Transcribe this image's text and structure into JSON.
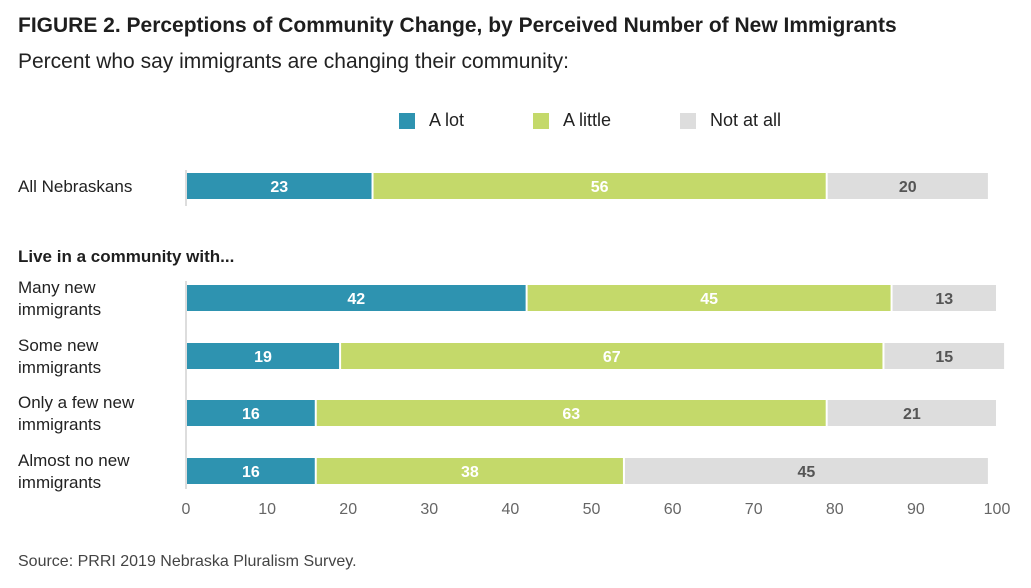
{
  "title": "FIGURE 2. Perceptions of Community Change, by Perceived Number of New Immigrants",
  "subtitle": "Percent who say immigrants are changing their community:",
  "source": "Source: PRRI 2019 Nebraska Pluralism Survey.",
  "colors": {
    "a_lot": "#2e93b0",
    "a_little": "#c4d96a",
    "not_at_all": "#dddddd"
  },
  "chart_data": {
    "type": "bar",
    "orientation": "horizontal",
    "stacked": true,
    "title": "FIGURE 2. Perceptions of Community Change, by Perceived Number of New Immigrants",
    "subtitle": "Percent who say immigrants are changing their community:",
    "group_label": "Live in a community with...",
    "categories": [
      [
        "All Nebraskans"
      ],
      [
        "Many new",
        "immigrants"
      ],
      [
        "Some new",
        "immigrants"
      ],
      [
        "Only a few new",
        "immigrants"
      ],
      [
        "Almost no new",
        "immigrants"
      ]
    ],
    "series": [
      {
        "name": "A lot",
        "values": [
          23,
          42,
          19,
          16,
          16
        ]
      },
      {
        "name": "A little",
        "values": [
          56,
          45,
          67,
          63,
          38
        ]
      },
      {
        "name": "Not at all",
        "values": [
          20,
          13,
          15,
          21,
          45
        ]
      }
    ],
    "xlim": [
      0,
      100
    ],
    "xticks": [
      0,
      10,
      20,
      30,
      40,
      50,
      60,
      70,
      80,
      90,
      100
    ],
    "grid": false,
    "legend_position": "top"
  }
}
